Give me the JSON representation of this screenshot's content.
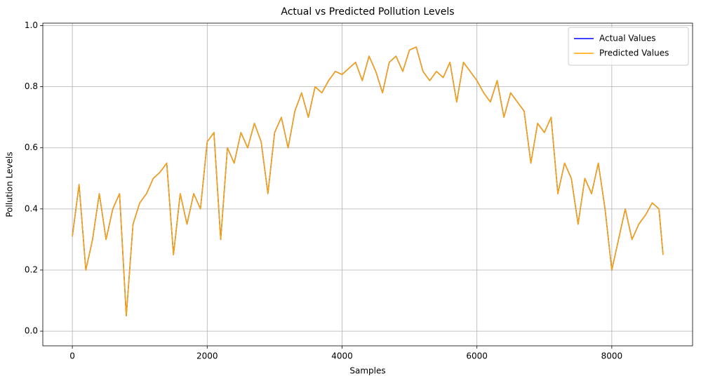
{
  "chart_data": {
    "type": "line",
    "title": "Actual vs Predicted Pollution Levels",
    "x_label": "Samples",
    "y_label": "Pollution Levels",
    "x": [
      0,
      100,
      200,
      300,
      400,
      500,
      600,
      700,
      800,
      900,
      1000,
      1100,
      1200,
      1300,
      1400,
      1500,
      1600,
      1700,
      1800,
      1900,
      2000,
      2100,
      2200,
      2300,
      2400,
      2500,
      2600,
      2700,
      2800,
      2900,
      3000,
      3100,
      3200,
      3300,
      3400,
      3500,
      3600,
      3700,
      3800,
      3900,
      4000,
      4100,
      4200,
      4300,
      4400,
      4500,
      4600,
      4700,
      4800,
      4900,
      5000,
      5100,
      5200,
      5300,
      5400,
      5500,
      5600,
      5700,
      5800,
      5900,
      6000,
      6100,
      6200,
      6300,
      6400,
      6500,
      6600,
      6700,
      6800,
      6900,
      7000,
      7100,
      7200,
      7300,
      7400,
      7500,
      7600,
      7700,
      7800,
      7900,
      8000,
      8100,
      8200,
      8300,
      8400,
      8500,
      8600,
      8700,
      8760
    ],
    "series": [
      {
        "name": "Actual Values",
        "color": "#0000ff",
        "values": [
          0.31,
          0.48,
          0.2,
          0.3,
          0.45,
          0.3,
          0.4,
          0.45,
          0.05,
          0.35,
          0.42,
          0.45,
          0.5,
          0.52,
          0.55,
          0.25,
          0.45,
          0.35,
          0.45,
          0.4,
          0.62,
          0.65,
          0.3,
          0.6,
          0.55,
          0.65,
          0.6,
          0.68,
          0.62,
          0.45,
          0.65,
          0.7,
          0.6,
          0.72,
          0.78,
          0.7,
          0.8,
          0.78,
          0.82,
          0.85,
          0.84,
          0.86,
          0.88,
          0.82,
          0.9,
          0.85,
          0.78,
          0.88,
          0.9,
          0.85,
          0.92,
          0.93,
          0.85,
          0.82,
          0.85,
          0.83,
          0.88,
          0.75,
          0.88,
          0.85,
          0.82,
          0.78,
          0.75,
          0.82,
          0.7,
          0.78,
          0.75,
          0.72,
          0.55,
          0.68,
          0.65,
          0.7,
          0.45,
          0.55,
          0.5,
          0.35,
          0.5,
          0.45,
          0.55,
          0.4,
          0.2,
          0.3,
          0.4,
          0.3,
          0.35,
          0.38,
          0.42,
          0.4,
          0.25
        ]
      },
      {
        "name": "Predicted Values",
        "color": "#ffa500",
        "values": [
          0.31,
          0.48,
          0.2,
          0.3,
          0.45,
          0.3,
          0.4,
          0.45,
          0.05,
          0.35,
          0.42,
          0.45,
          0.5,
          0.52,
          0.55,
          0.25,
          0.45,
          0.35,
          0.45,
          0.4,
          0.62,
          0.65,
          0.3,
          0.6,
          0.55,
          0.65,
          0.6,
          0.68,
          0.62,
          0.45,
          0.65,
          0.7,
          0.6,
          0.72,
          0.78,
          0.7,
          0.8,
          0.78,
          0.82,
          0.85,
          0.84,
          0.86,
          0.88,
          0.82,
          0.9,
          0.85,
          0.78,
          0.88,
          0.9,
          0.85,
          0.92,
          0.93,
          0.85,
          0.82,
          0.85,
          0.83,
          0.88,
          0.75,
          0.88,
          0.85,
          0.82,
          0.78,
          0.75,
          0.82,
          0.7,
          0.78,
          0.75,
          0.72,
          0.55,
          0.68,
          0.65,
          0.7,
          0.45,
          0.55,
          0.5,
          0.35,
          0.5,
          0.45,
          0.55,
          0.4,
          0.2,
          0.3,
          0.4,
          0.3,
          0.35,
          0.38,
          0.42,
          0.4,
          0.25
        ]
      }
    ],
    "xlim": [
      -438,
      9198
    ],
    "ylim": [
      -0.048,
      1.008
    ],
    "xticks": [
      0,
      2000,
      4000,
      6000,
      8000
    ],
    "yticks": [
      {
        "value": 0,
        "label": "0.0"
      },
      0.2,
      0.4,
      0.6,
      0.8,
      {
        "value": 1,
        "label": "1.0"
      }
    ],
    "grid": true,
    "legend": "upper right"
  }
}
